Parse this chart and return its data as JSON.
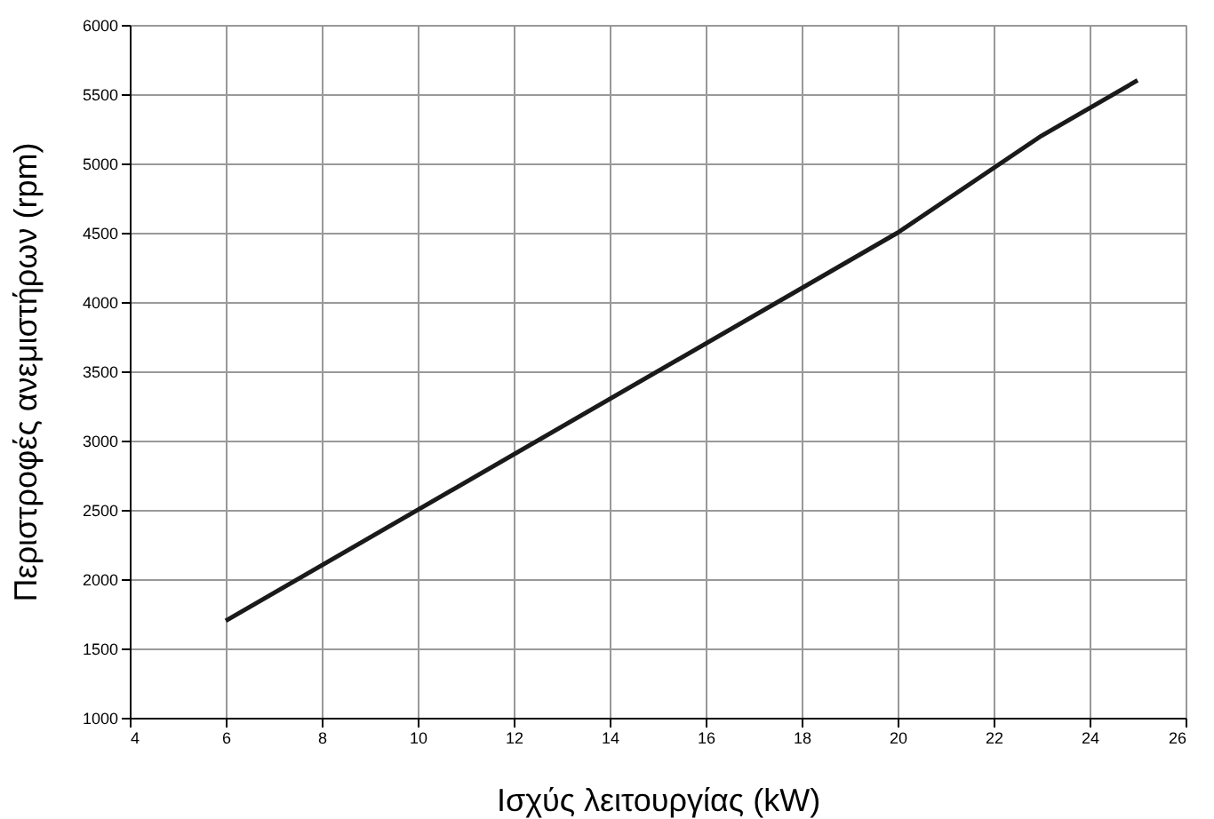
{
  "chart_data": {
    "type": "line",
    "xlabel": "Ισχύς λειτουργίας (kW)",
    "ylabel": "Περιστροφές ανεμιστήρων (rpm)",
    "x": [
      6,
      20,
      23,
      25
    ],
    "series": [
      {
        "color": "#1a1a1a",
        "values": [
          1700,
          4500,
          5200,
          5600
        ]
      }
    ],
    "xlim": [
      4,
      26
    ],
    "xticks": [
      4,
      6,
      8,
      10,
      12,
      14,
      16,
      18,
      20,
      22,
      24,
      26
    ],
    "ylim": [
      1000,
      6000
    ],
    "yticks": [
      1000,
      1500,
      2000,
      2500,
      3000,
      3500,
      4000,
      4500,
      5000,
      5500,
      6000
    ],
    "grid": true,
    "marker": "none",
    "line_style": "solid"
  }
}
